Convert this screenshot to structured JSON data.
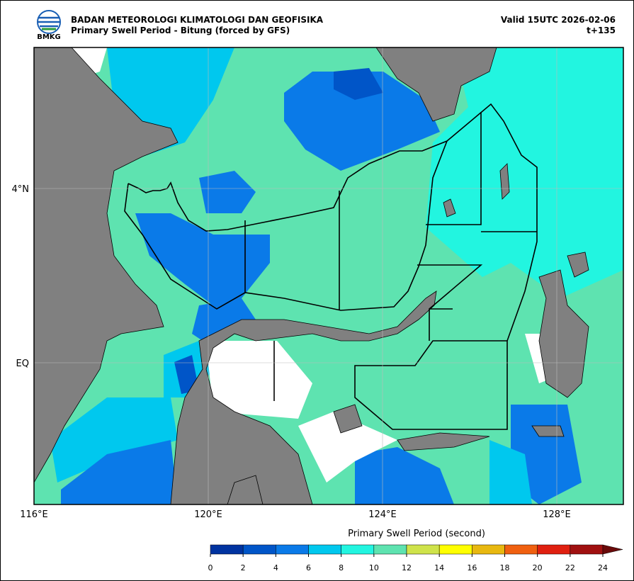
{
  "header": {
    "logo_text": "BMKG",
    "title": "BADAN METEOROLOGI KLIMATOLOGI DAN GEOFISIKA",
    "subtitle": "Primary Swell Period - Bitung (forced by GFS)",
    "valid": "Valid 15UTC 2026-02-06",
    "lead": "t+135"
  },
  "map": {
    "lat_labels": [
      "4°N",
      "EQ"
    ],
    "lon_labels": [
      "116°E",
      "120°E",
      "124°E",
      "128°E"
    ]
  },
  "colorbar": {
    "label": "Primary Swell Period (second)",
    "ticks": [
      0,
      2,
      4,
      6,
      8,
      10,
      12,
      14,
      16,
      18,
      20,
      22,
      24
    ],
    "colors": [
      "#0033a0",
      "#0055c8",
      "#0a7ae8",
      "#00c8ee",
      "#22f5e0",
      "#5ee3b0",
      "#cfe34a",
      "#ffff00",
      "#e8b810",
      "#f06010",
      "#e02010",
      "#a01010"
    ],
    "extend_color": "#6a0a0a"
  }
}
